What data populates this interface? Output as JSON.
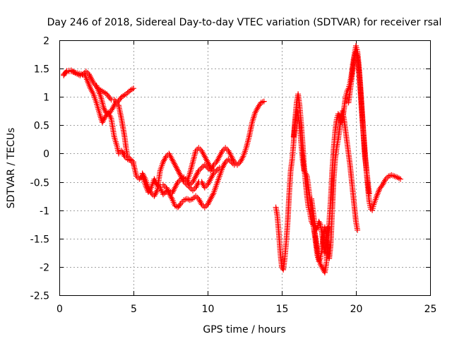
{
  "chart_data": {
    "type": "scatter",
    "title": "Day 246 of 2018, Sidereal Day-to-day VTEC variation (SDTVAR) for receiver rsal",
    "xlabel": "GPS time / hours",
    "ylabel": "SDTVAR / TECUs",
    "xlim": [
      0,
      25
    ],
    "ylim": [
      -2.5,
      2
    ],
    "xticks": [
      0,
      5,
      10,
      15,
      20,
      25
    ],
    "yticks": [
      -2.5,
      -2,
      -1.5,
      -1,
      -0.5,
      0,
      0.5,
      1,
      1.5,
      2
    ],
    "xtick_labels": [
      "0",
      "5",
      "10",
      "15",
      "20",
      "25"
    ],
    "ytick_labels": [
      "-2.5",
      "-2",
      "-1.5",
      "-1",
      "-0.5",
      "0",
      "0.5",
      "1",
      "1.5",
      "2"
    ],
    "grid": true,
    "marker": "+",
    "color": "#ff0000",
    "series": [
      {
        "points": [
          [
            0.3,
            1.4
          ],
          [
            0.5,
            1.45
          ],
          [
            0.8,
            1.45
          ],
          [
            1.2,
            1.42
          ],
          [
            1.6,
            1.4
          ],
          [
            1.8,
            1.45
          ],
          [
            2.0,
            1.4
          ],
          [
            2.3,
            1.25
          ],
          [
            2.6,
            1.15
          ],
          [
            2.9,
            1.1
          ],
          [
            3.2,
            1.05
          ],
          [
            3.5,
            0.95
          ],
          [
            3.7,
            0.95
          ],
          [
            3.9,
            0.9
          ],
          [
            4.2,
            1.0
          ],
          [
            4.5,
            1.05
          ],
          [
            4.8,
            1.12
          ],
          [
            5.0,
            1.15
          ]
        ]
      },
      {
        "points": [
          [
            0.3,
            1.38
          ],
          [
            0.5,
            1.46
          ],
          [
            0.8,
            1.47
          ],
          [
            1.1,
            1.42
          ],
          [
            1.4,
            1.38
          ],
          [
            1.7,
            1.4
          ],
          [
            1.9,
            1.28
          ],
          [
            2.1,
            1.15
          ],
          [
            2.3,
            1.05
          ],
          [
            2.5,
            0.9
          ],
          [
            2.7,
            0.72
          ],
          [
            2.9,
            0.55
          ],
          [
            3.1,
            0.65
          ],
          [
            3.3,
            0.72
          ],
          [
            3.5,
            0.62
          ],
          [
            3.7,
            0.3
          ],
          [
            3.9,
            0.12
          ],
          [
            4.0,
            0.0
          ],
          [
            4.2,
            0.05
          ],
          [
            4.4,
            -0.05
          ],
          [
            4.6,
            -0.1
          ],
          [
            4.8,
            -0.12
          ],
          [
            5.0,
            -0.18
          ],
          [
            5.2,
            -0.4
          ],
          [
            5.4,
            -0.45
          ],
          [
            5.6,
            -0.38
          ],
          [
            5.8,
            -0.55
          ],
          [
            6.0,
            -0.68
          ],
          [
            6.2,
            -0.6
          ],
          [
            6.4,
            -0.45
          ],
          [
            6.6,
            -0.55
          ],
          [
            6.8,
            -0.6
          ],
          [
            7.0,
            -0.72
          ],
          [
            7.2,
            -0.68
          ],
          [
            7.4,
            -0.65
          ],
          [
            7.6,
            -0.7
          ],
          [
            7.8,
            -0.6
          ],
          [
            8.0,
            -0.5
          ],
          [
            8.2,
            -0.45
          ],
          [
            8.4,
            -0.42
          ],
          [
            8.6,
            -0.48
          ],
          [
            8.8,
            -0.55
          ],
          [
            9.0,
            -0.5
          ],
          [
            9.2,
            -0.4
          ],
          [
            9.4,
            -0.3
          ],
          [
            9.6,
            -0.25
          ],
          [
            9.8,
            -0.2
          ],
          [
            10.0,
            -0.25
          ],
          [
            10.2,
            -0.3
          ],
          [
            10.4,
            -0.2
          ],
          [
            10.6,
            -0.15
          ],
          [
            10.8,
            -0.05
          ],
          [
            11.0,
            0.05
          ],
          [
            11.2,
            0.1
          ],
          [
            11.4,
            0.05
          ],
          [
            11.6,
            -0.05
          ],
          [
            11.8,
            -0.15
          ],
          [
            12.0,
            -0.2
          ],
          [
            12.2,
            -0.15
          ],
          [
            12.4,
            -0.05
          ],
          [
            12.6,
            0.1
          ],
          [
            12.8,
            0.3
          ],
          [
            13.0,
            0.55
          ],
          [
            13.2,
            0.72
          ],
          [
            13.4,
            0.82
          ],
          [
            13.6,
            0.9
          ],
          [
            13.8,
            0.92
          ]
        ]
      },
      {
        "points": [
          [
            2.5,
            1.2
          ],
          [
            2.8,
            1.0
          ],
          [
            3.0,
            0.8
          ],
          [
            3.2,
            0.7
          ],
          [
            3.4,
            0.72
          ],
          [
            3.6,
            0.8
          ],
          [
            3.8,
            0.9
          ],
          [
            4.0,
            0.85
          ],
          [
            4.2,
            0.6
          ],
          [
            4.4,
            0.3
          ],
          [
            4.5,
            0.1
          ],
          [
            4.6,
            -0.05
          ],
          [
            4.8,
            -0.1
          ],
          [
            5.0,
            -0.15
          ]
        ]
      },
      {
        "points": [
          [
            5.6,
            -0.35
          ],
          [
            5.8,
            -0.45
          ],
          [
            6.0,
            -0.6
          ],
          [
            6.2,
            -0.7
          ],
          [
            6.4,
            -0.75
          ],
          [
            6.6,
            -0.65
          ],
          [
            6.8,
            -0.3
          ],
          [
            7.0,
            -0.15
          ],
          [
            7.2,
            -0.05
          ],
          [
            7.4,
            0.0
          ],
          [
            7.6,
            -0.1
          ],
          [
            7.8,
            -0.2
          ],
          [
            8.0,
            -0.3
          ],
          [
            8.2,
            -0.4
          ],
          [
            8.4,
            -0.5
          ],
          [
            8.6,
            -0.55
          ],
          [
            8.8,
            -0.6
          ],
          [
            9.0,
            -0.65
          ],
          [
            9.2,
            -0.6
          ],
          [
            9.4,
            -0.5
          ],
          [
            9.6,
            -0.5
          ],
          [
            9.8,
            -0.6
          ],
          [
            10.0,
            -0.55
          ],
          [
            10.2,
            -0.45
          ],
          [
            10.4,
            -0.35
          ],
          [
            10.6,
            -0.3
          ],
          [
            10.8,
            -0.25
          ]
        ]
      },
      {
        "points": [
          [
            7.0,
            -0.55
          ],
          [
            7.2,
            -0.6
          ],
          [
            7.4,
            -0.7
          ],
          [
            7.6,
            -0.8
          ],
          [
            7.8,
            -0.92
          ],
          [
            8.0,
            -0.95
          ],
          [
            8.2,
            -0.88
          ],
          [
            8.4,
            -0.82
          ],
          [
            8.6,
            -0.8
          ],
          [
            8.8,
            -0.82
          ],
          [
            9.0,
            -0.8
          ],
          [
            9.2,
            -0.75
          ],
          [
            9.4,
            -0.8
          ],
          [
            9.6,
            -0.9
          ],
          [
            9.8,
            -0.95
          ],
          [
            10.0,
            -0.9
          ],
          [
            10.2,
            -0.8
          ],
          [
            10.4,
            -0.7
          ],
          [
            10.6,
            -0.55
          ],
          [
            10.8,
            -0.4
          ],
          [
            11.0,
            -0.25
          ],
          [
            11.2,
            -0.15
          ],
          [
            11.4,
            -0.1
          ],
          [
            11.6,
            -0.15
          ],
          [
            11.8,
            -0.2
          ]
        ]
      },
      {
        "points": [
          [
            8.6,
            -0.5
          ],
          [
            8.8,
            -0.35
          ],
          [
            9.0,
            -0.15
          ],
          [
            9.2,
            0.05
          ],
          [
            9.4,
            0.1
          ],
          [
            9.6,
            0.05
          ],
          [
            9.8,
            -0.05
          ],
          [
            10.0,
            -0.15
          ],
          [
            10.2,
            -0.25
          ],
          [
            10.4,
            -0.3
          ]
        ]
      },
      {
        "points": [
          [
            14.6,
            -0.95
          ],
          [
            14.7,
            -1.1
          ],
          [
            14.8,
            -1.4
          ],
          [
            14.9,
            -1.75
          ],
          [
            15.0,
            -2.0
          ],
          [
            15.1,
            -2.05
          ],
          [
            15.2,
            -1.85
          ],
          [
            15.3,
            -1.55
          ],
          [
            15.4,
            -1.2
          ],
          [
            15.5,
            -0.7
          ],
          [
            15.6,
            -0.3
          ],
          [
            15.7,
            -0.1
          ],
          [
            15.8,
            0.2
          ],
          [
            15.9,
            0.6
          ],
          [
            16.0,
            0.9
          ],
          [
            16.1,
            1.05
          ],
          [
            16.2,
            0.85
          ],
          [
            16.3,
            0.55
          ],
          [
            16.4,
            0.2
          ],
          [
            16.5,
            -0.2
          ],
          [
            16.6,
            -0.5
          ],
          [
            16.7,
            -0.75
          ],
          [
            16.8,
            -0.95
          ],
          [
            16.9,
            -1.05
          ],
          [
            17.0,
            -1.2
          ],
          [
            17.1,
            -1.25
          ],
          [
            17.2,
            -1.35
          ],
          [
            17.3,
            -1.5
          ],
          [
            17.4,
            -1.7
          ],
          [
            17.5,
            -1.85
          ],
          [
            17.6,
            -1.95
          ],
          [
            17.7,
            -2.0
          ],
          [
            17.8,
            -2.05
          ],
          [
            17.9,
            -2.1
          ],
          [
            18.0,
            -1.95
          ],
          [
            18.1,
            -1.6
          ],
          [
            18.2,
            -1.2
          ],
          [
            18.3,
            -0.8
          ],
          [
            18.4,
            -0.3
          ],
          [
            18.5,
            0.1
          ],
          [
            18.6,
            0.4
          ],
          [
            18.7,
            0.6
          ],
          [
            18.8,
            0.7
          ],
          [
            18.9,
            0.65
          ],
          [
            19.0,
            0.55
          ],
          [
            19.1,
            0.6
          ],
          [
            19.2,
            0.8
          ],
          [
            19.3,
            1.0
          ],
          [
            19.4,
            1.1
          ],
          [
            19.5,
            1.15
          ],
          [
            19.6,
            1.25
          ],
          [
            19.7,
            1.4
          ],
          [
            19.8,
            1.6
          ],
          [
            19.9,
            1.75
          ],
          [
            20.0,
            1.9
          ],
          [
            20.1,
            1.8
          ],
          [
            20.2,
            1.55
          ],
          [
            20.3,
            1.2
          ],
          [
            20.4,
            0.8
          ],
          [
            20.5,
            0.4
          ],
          [
            20.6,
            0.05
          ],
          [
            20.7,
            -0.3
          ],
          [
            20.8,
            -0.6
          ],
          [
            20.9,
            -0.85
          ],
          [
            21.0,
            -0.98
          ],
          [
            21.1,
            -1.0
          ],
          [
            21.2,
            -0.9
          ],
          [
            21.4,
            -0.75
          ],
          [
            21.6,
            -0.62
          ],
          [
            21.8,
            -0.55
          ],
          [
            22.0,
            -0.45
          ],
          [
            22.2,
            -0.4
          ],
          [
            22.4,
            -0.38
          ],
          [
            22.6,
            -0.4
          ],
          [
            22.8,
            -0.42
          ],
          [
            23.0,
            -0.45
          ]
        ]
      },
      {
        "points": [
          [
            15.8,
            0.3
          ],
          [
            15.9,
            0.55
          ],
          [
            16.0,
            0.75
          ],
          [
            16.1,
            0.7
          ],
          [
            16.2,
            0.5
          ],
          [
            16.3,
            0.2
          ],
          [
            16.4,
            -0.1
          ],
          [
            16.5,
            -0.3
          ],
          [
            16.6,
            -0.35
          ],
          [
            16.7,
            -0.4
          ],
          [
            16.8,
            -0.6
          ],
          [
            16.9,
            -0.8
          ],
          [
            17.0,
            -1.0
          ],
          [
            17.1,
            -1.2
          ],
          [
            17.2,
            -1.4
          ],
          [
            17.3,
            -1.6
          ],
          [
            17.4,
            -1.8
          ],
          [
            17.5,
            -1.9
          ],
          [
            17.6,
            -1.85
          ],
          [
            17.7,
            -1.7
          ],
          [
            17.8,
            -1.5
          ],
          [
            17.9,
            -1.3
          ],
          [
            18.0,
            -1.45
          ],
          [
            18.1,
            -1.7
          ],
          [
            18.2,
            -1.85
          ],
          [
            18.3,
            -1.6
          ],
          [
            18.4,
            -1.0
          ],
          [
            18.5,
            -0.45
          ],
          [
            18.6,
            -0.1
          ],
          [
            18.7,
            0.1
          ],
          [
            18.8,
            0.25
          ],
          [
            18.9,
            0.45
          ],
          [
            19.0,
            0.65
          ],
          [
            19.1,
            0.75
          ],
          [
            19.2,
            0.6
          ],
          [
            19.3,
            0.4
          ],
          [
            19.4,
            0.2
          ],
          [
            19.5,
            0.0
          ],
          [
            19.6,
            -0.2
          ],
          [
            19.7,
            -0.45
          ],
          [
            19.8,
            -0.7
          ],
          [
            19.9,
            -0.95
          ],
          [
            20.0,
            -1.2
          ],
          [
            20.1,
            -1.35
          ]
        ]
      },
      {
        "points": [
          [
            19.5,
            0.9
          ],
          [
            19.6,
            1.1
          ],
          [
            19.7,
            1.3
          ],
          [
            19.8,
            1.5
          ],
          [
            19.9,
            1.7
          ],
          [
            20.0,
            1.8
          ],
          [
            20.1,
            1.7
          ],
          [
            20.2,
            1.45
          ],
          [
            20.3,
            1.1
          ],
          [
            20.4,
            0.7
          ],
          [
            20.5,
            0.35
          ],
          [
            20.6,
            -0.05
          ],
          [
            20.7,
            -0.25
          ],
          [
            20.8,
            -0.5
          ],
          [
            20.9,
            -0.7
          ]
        ]
      },
      {
        "points": [
          [
            17.0,
            -0.8
          ],
          [
            17.1,
            -1.0
          ],
          [
            17.2,
            -1.2
          ],
          [
            17.3,
            -1.35
          ],
          [
            17.4,
            -1.3
          ],
          [
            17.5,
            -1.2
          ],
          [
            17.6,
            -1.25
          ],
          [
            17.7,
            -1.4
          ],
          [
            17.8,
            -1.6
          ],
          [
            17.9,
            -1.75
          ],
          [
            18.0,
            -1.6
          ],
          [
            18.1,
            -1.3
          ]
        ]
      }
    ]
  }
}
